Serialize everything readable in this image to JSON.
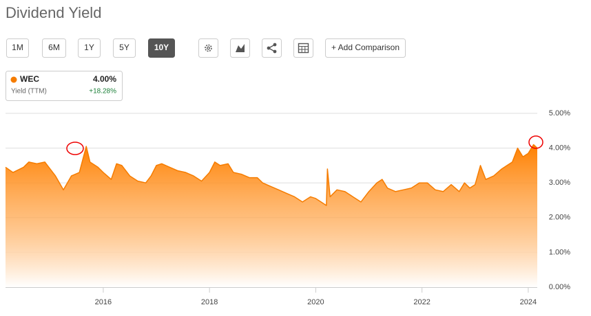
{
  "header": {
    "title": "Dividend Yield"
  },
  "toolbar": {
    "ranges": [
      "1M",
      "6M",
      "1Y",
      "5Y",
      "10Y"
    ],
    "active": "10Y",
    "add_comparison": "+ Add Comparison"
  },
  "legend_card": {
    "value": "4.00%",
    "label": "Yield (TTM)",
    "change": "+18.28%"
  },
  "chart_data": {
    "type": "area",
    "x": [
      2014.16,
      2014.3,
      2014.5,
      2014.6,
      2014.75,
      2014.9,
      2015.0,
      2015.1,
      2015.25,
      2015.4,
      2015.55,
      2015.68,
      2015.75,
      2015.9,
      2016.0,
      2016.15,
      2016.25,
      2016.35,
      2016.5,
      2016.65,
      2016.8,
      2016.9,
      2017.0,
      2017.1,
      2017.25,
      2017.4,
      2017.55,
      2017.7,
      2017.85,
      2018.0,
      2018.1,
      2018.2,
      2018.35,
      2018.45,
      2018.6,
      2018.75,
      2018.9,
      2019.0,
      2019.15,
      2019.3,
      2019.45,
      2019.6,
      2019.75,
      2019.9,
      2020.0,
      2020.1,
      2020.2,
      2020.22,
      2020.27,
      2020.4,
      2020.55,
      2020.7,
      2020.85,
      2021.0,
      2021.15,
      2021.25,
      2021.35,
      2021.5,
      2021.65,
      2021.8,
      2021.95,
      2022.1,
      2022.25,
      2022.4,
      2022.55,
      2022.7,
      2022.8,
      2022.9,
      2023.0,
      2023.1,
      2023.2,
      2023.35,
      2023.5,
      2023.6,
      2023.7,
      2023.8,
      2023.9,
      2024.0,
      2024.1,
      2024.17
    ],
    "series": [
      {
        "name": "WEC",
        "color": "#f57c00",
        "values": [
          3.45,
          3.3,
          3.45,
          3.6,
          3.55,
          3.6,
          3.4,
          3.2,
          2.8,
          3.2,
          3.3,
          4.05,
          3.6,
          3.45,
          3.3,
          3.1,
          3.55,
          3.5,
          3.2,
          3.05,
          3.0,
          3.2,
          3.5,
          3.55,
          3.45,
          3.35,
          3.3,
          3.2,
          3.05,
          3.3,
          3.6,
          3.5,
          3.55,
          3.3,
          3.25,
          3.15,
          3.15,
          3.0,
          2.9,
          2.8,
          2.7,
          2.6,
          2.45,
          2.6,
          2.55,
          2.45,
          2.35,
          3.4,
          2.6,
          2.8,
          2.75,
          2.6,
          2.45,
          2.75,
          3.0,
          3.1,
          2.85,
          2.75,
          2.8,
          2.85,
          3.0,
          3.0,
          2.8,
          2.75,
          2.95,
          2.75,
          3.0,
          2.85,
          2.95,
          3.5,
          3.1,
          3.2,
          3.4,
          3.5,
          3.6,
          4.0,
          3.75,
          3.85,
          4.1,
          4.0
        ]
      }
    ],
    "xlim": [
      2014.16,
      2024.17
    ],
    "xticks": [
      2016,
      2018,
      2020,
      2022,
      2024
    ],
    "ylim": [
      0,
      5
    ],
    "yticks": [
      {
        "value": 0,
        "label": "0.00%"
      },
      {
        "value": 1,
        "label": "1.00%"
      },
      {
        "value": 2,
        "label": "2.00%"
      },
      {
        "value": 3,
        "label": "3.00%"
      },
      {
        "value": 4,
        "label": "4.00%"
      },
      {
        "value": 5,
        "label": "5.00%"
      }
    ],
    "grid": true
  }
}
